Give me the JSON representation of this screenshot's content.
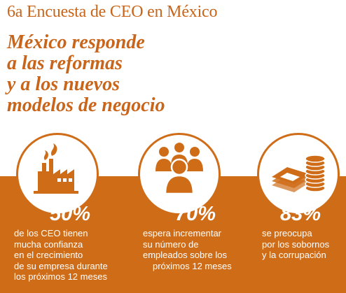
{
  "survey_title": "6a Encuesta de CEO en México",
  "headline": [
    "México responde",
    "a las reformas",
    "y a los nuevos",
    "modelos de negocio"
  ],
  "colors": {
    "accent": "#cf6c18",
    "title": "#c8651b",
    "text_on_band": "#ffffff"
  },
  "stats": [
    {
      "icon": "factory-icon",
      "percent": "50%",
      "lines": [
        "de los CEO tienen",
        "mucha confianza",
        "en el crecimiento",
        "de su empresa durante",
        "los próximos 12 meses"
      ]
    },
    {
      "icon": "people-group-icon",
      "percent": "70%",
      "lines": [
        "espera incrementar",
        "su número de",
        "empleados sobre los",
        "próximos 12 meses"
      ]
    },
    {
      "icon": "money-coins-icon",
      "percent": "83%",
      "lines": [
        "se preocupa",
        "por los sobornos",
        "y la corrupación"
      ]
    }
  ]
}
